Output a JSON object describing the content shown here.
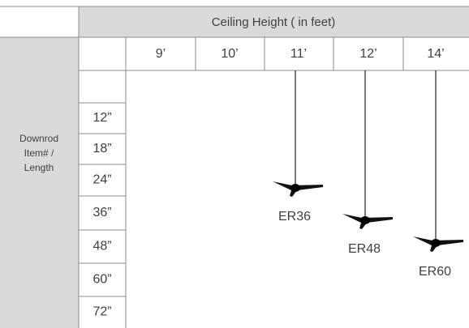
{
  "header": {
    "title": "Ceiling Height ( in feet)"
  },
  "columns": [
    "9’",
    "10’",
    "11’",
    "12’",
    "14’"
  ],
  "row_header": [
    "Downrod",
    "Item# /",
    "Length"
  ],
  "rows": [
    "12”",
    "18”",
    "24”",
    "36”",
    "48”",
    "60”",
    "72”"
  ],
  "fans": [
    "ER36",
    "ER48",
    "ER60"
  ]
}
